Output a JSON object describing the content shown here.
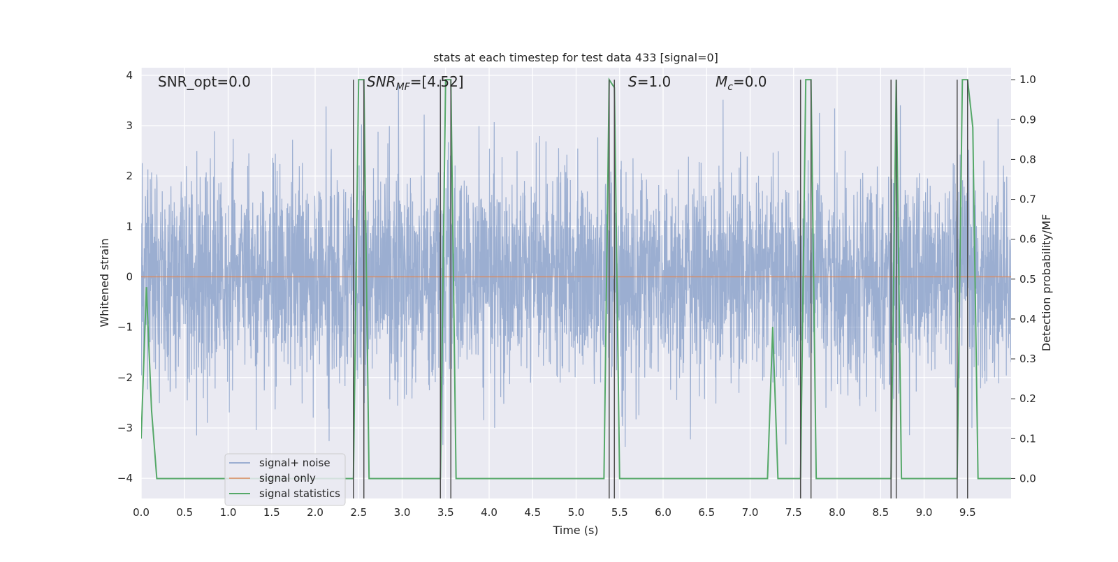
{
  "chart_data": {
    "type": "line",
    "title": "stats at each timestep for test data 433 [signal=0]",
    "xlabel": "Time (s)",
    "ylabel": "Whitened strain",
    "ylabel_right": "Detection probability/MF",
    "xlim": [
      0.0,
      10.0
    ],
    "ylim": [
      -4.4,
      4.15
    ],
    "ylim_right": [
      -0.05,
      1.03
    ],
    "xticks": [
      0.0,
      0.5,
      1.0,
      1.5,
      2.0,
      2.5,
      3.0,
      3.5,
      4.0,
      4.5,
      5.0,
      5.5,
      6.0,
      6.5,
      7.0,
      7.5,
      8.0,
      8.5,
      9.0,
      9.5
    ],
    "xtick_labels": [
      "0.0",
      "0.5",
      "1.0",
      "1.5",
      "2.0",
      "2.5",
      "3.0",
      "3.5",
      "4.0",
      "4.5",
      "5.0",
      "5.5",
      "6.0",
      "6.5",
      "7.0",
      "7.5",
      "8.0",
      "8.5",
      "9.0",
      "9.5"
    ],
    "yticks": [
      4,
      3,
      2,
      1,
      0,
      -1,
      -2,
      -3,
      -4
    ],
    "ytick_labels": [
      "4",
      "3",
      "2",
      "1",
      "0",
      "−1",
      "−2",
      "−3",
      "−4"
    ],
    "yticks_right": [
      1.0,
      0.9,
      0.8,
      0.7,
      0.6,
      0.5,
      0.4,
      0.3,
      0.2,
      0.1,
      0.0
    ],
    "ytick_labels_right": [
      "1.0",
      "0.9",
      "0.8",
      "0.7",
      "0.6",
      "0.5",
      "0.4",
      "0.3",
      "0.2",
      "0.1",
      "0.0"
    ],
    "grid": true,
    "background": "#eaeaf2",
    "annotations": {
      "snr_opt": "SNR_opt=0.0",
      "snr_mf_main": "SNR",
      "snr_mf_sub": "MF",
      "snr_mf_value": "=[4.52]",
      "s_main": "S",
      "s_value": "=1.0",
      "mc_main": "M",
      "mc_sub": "c",
      "mc_value": "=0.0"
    },
    "legend": {
      "position": "lower-left",
      "entries": [
        "signal+ noise",
        "signal only",
        "signal statistics"
      ]
    },
    "series": [
      {
        "name": "signal+ noise",
        "color": "#4c72b0",
        "axis": "left",
        "kind": "noise",
        "sigma": 1.0,
        "duration": 10.0
      },
      {
        "name": "signal only",
        "color": "#dd8452",
        "axis": "left",
        "x": [
          0.0,
          10.0
        ],
        "y": [
          0.0,
          0.0
        ]
      },
      {
        "name": "signal statistics",
        "color": "#55a868",
        "axis": "right",
        "x": [
          0.0,
          0.06,
          0.12,
          0.18,
          2.44,
          2.5,
          2.56,
          2.62,
          3.44,
          3.5,
          3.56,
          3.62,
          5.32,
          5.38,
          5.44,
          5.5,
          7.2,
          7.26,
          7.32,
          7.58,
          7.64,
          7.7,
          7.76,
          7.82,
          8.62,
          8.68,
          8.74,
          9.38,
          9.44,
          9.5,
          9.56,
          9.62,
          10.0
        ],
        "y": [
          0.1,
          0.48,
          0.17,
          0.0,
          0.0,
          1.0,
          1.0,
          0.0,
          0.0,
          1.0,
          1.0,
          0.0,
          0.0,
          1.0,
          0.98,
          0.0,
          0.0,
          0.38,
          0.0,
          0.0,
          1.0,
          1.0,
          0.0,
          0.0,
          0.0,
          1.0,
          0.0,
          0.0,
          1.0,
          1.0,
          0.88,
          0.0,
          0.0
        ]
      }
    ],
    "vlines": {
      "color": "#4d4d4d",
      "x": [
        2.44,
        2.56,
        3.44,
        3.56,
        5.38,
        5.44,
        7.58,
        7.7,
        8.62,
        8.68,
        9.38,
        9.5
      ],
      "y_range": [
        -0.05,
        1.0
      ]
    }
  }
}
